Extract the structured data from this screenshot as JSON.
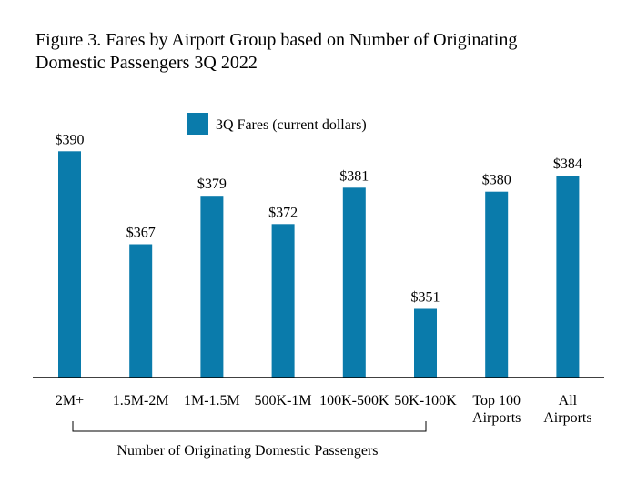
{
  "chart_data": {
    "type": "bar",
    "title_lines": [
      "Figure 3. Fares by Airport Group based on Number of Originating",
      "Domestic Passengers 3Q 2022"
    ],
    "categories": [
      [
        "2M+"
      ],
      [
        "1.5M-2M"
      ],
      [
        "1M-1.5M"
      ],
      [
        "500K-1M"
      ],
      [
        "100K-500K"
      ],
      [
        "50K-100K"
      ],
      [
        "Top 100",
        "Airports"
      ],
      [
        "All",
        "Airports"
      ]
    ],
    "series": [
      {
        "name": "3Q Fares (current dollars)",
        "values": [
          390,
          367,
          379,
          372,
          381,
          351,
          380,
          384
        ],
        "labels": [
          "$390",
          "$367",
          "$379",
          "$372",
          "$381",
          "$351",
          "$380",
          "$384"
        ],
        "color": "#0a7bab"
      }
    ],
    "bracket_label": "Number of Originating Domestic Passengers",
    "bracket_span": [
      "2M+",
      "50K-100K"
    ],
    "legend_position": "top-center",
    "grid": false,
    "ylim": [
      334,
      393
    ]
  }
}
